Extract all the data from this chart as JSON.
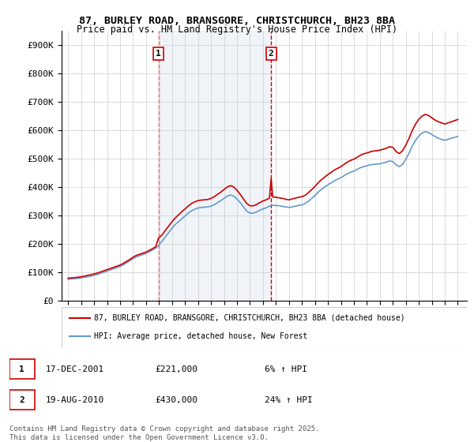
{
  "title_line1": "87, BURLEY ROAD, BRANSGORE, CHRISTCHURCH, BH23 8BA",
  "title_line2": "Price paid vs. HM Land Registry's House Price Index (HPI)",
  "ylim": [
    0,
    950000
  ],
  "yticks": [
    0,
    100000,
    200000,
    300000,
    400000,
    500000,
    600000,
    700000,
    800000,
    900000
  ],
  "ytick_labels": [
    "£0",
    "£100K",
    "£200K",
    "£300K",
    "£400K",
    "£500K",
    "£600K",
    "£700K",
    "£800K",
    "£900K"
  ],
  "xlim_start": 1994.5,
  "xlim_end": 2025.7,
  "sale1_x": 2001.96,
  "sale1_y": 221000,
  "sale1_label": "1",
  "sale2_x": 2010.63,
  "sale2_y": 430000,
  "sale2_label": "2",
  "legend_house_label": "87, BURLEY ROAD, BRANSGORE, CHRISTCHURCH, BH23 8BA (detached house)",
  "legend_hpi_label": "HPI: Average price, detached house, New Forest",
  "house_color": "#cc0000",
  "hpi_color": "#6699cc",
  "vline_color": "#cc0000",
  "vline_style": "--",
  "annotation_box_color": "#cc0000",
  "bg_color": "#dce6f1",
  "plot_bg": "#ffffff",
  "footer_line1": "Contains HM Land Registry data © Crown copyright and database right 2025.",
  "footer_line2": "This data is licensed under the Open Government Licence v3.0.",
  "table_row1": [
    "1",
    "17-DEC-2001",
    "£221,000",
    "6% ↑ HPI"
  ],
  "table_row2": [
    "2",
    "19-AUG-2010",
    "£430,000",
    "24% ↑ HPI"
  ],
  "hpi_data": {
    "years": [
      1995.0,
      1995.25,
      1995.5,
      1995.75,
      1996.0,
      1996.25,
      1996.5,
      1996.75,
      1997.0,
      1997.25,
      1997.5,
      1997.75,
      1998.0,
      1998.25,
      1998.5,
      1998.75,
      1999.0,
      1999.25,
      1999.5,
      1999.75,
      2000.0,
      2000.25,
      2000.5,
      2000.75,
      2001.0,
      2001.25,
      2001.5,
      2001.75,
      2002.0,
      2002.25,
      2002.5,
      2002.75,
      2003.0,
      2003.25,
      2003.5,
      2003.75,
      2004.0,
      2004.25,
      2004.5,
      2004.75,
      2005.0,
      2005.25,
      2005.5,
      2005.75,
      2006.0,
      2006.25,
      2006.5,
      2006.75,
      2007.0,
      2007.25,
      2007.5,
      2007.75,
      2008.0,
      2008.25,
      2008.5,
      2008.75,
      2009.0,
      2009.25,
      2009.5,
      2009.75,
      2010.0,
      2010.25,
      2010.5,
      2010.75,
      2011.0,
      2011.25,
      2011.5,
      2011.75,
      2012.0,
      2012.25,
      2012.5,
      2012.75,
      2013.0,
      2013.25,
      2013.5,
      2013.75,
      2014.0,
      2014.25,
      2014.5,
      2014.75,
      2015.0,
      2015.25,
      2015.5,
      2015.75,
      2016.0,
      2016.25,
      2016.5,
      2016.75,
      2017.0,
      2017.25,
      2017.5,
      2017.75,
      2018.0,
      2018.25,
      2018.5,
      2018.75,
      2019.0,
      2019.25,
      2019.5,
      2019.75,
      2020.0,
      2020.25,
      2020.5,
      2020.75,
      2021.0,
      2021.25,
      2021.5,
      2021.75,
      2022.0,
      2022.25,
      2022.5,
      2022.75,
      2023.0,
      2023.25,
      2023.5,
      2023.75,
      2024.0,
      2024.25,
      2024.5,
      2024.75,
      2025.0
    ],
    "values": [
      75000,
      76000,
      77000,
      78000,
      80000,
      82000,
      84000,
      86000,
      89000,
      92000,
      96000,
      100000,
      104000,
      108000,
      112000,
      116000,
      120000,
      126000,
      133000,
      140000,
      148000,
      154000,
      158000,
      162000,
      166000,
      172000,
      178000,
      185000,
      196000,
      210000,
      225000,
      240000,
      255000,
      268000,
      278000,
      288000,
      298000,
      308000,
      316000,
      322000,
      326000,
      328000,
      329000,
      330000,
      333000,
      338000,
      345000,
      352000,
      360000,
      368000,
      372000,
      368000,
      358000,
      345000,
      330000,
      315000,
      308000,
      308000,
      312000,
      318000,
      323000,
      327000,
      333000,
      336000,
      335000,
      334000,
      332000,
      330000,
      328000,
      330000,
      333000,
      335000,
      337000,
      342000,
      350000,
      360000,
      370000,
      382000,
      392000,
      400000,
      408000,
      415000,
      422000,
      428000,
      433000,
      440000,
      447000,
      452000,
      456000,
      462000,
      468000,
      472000,
      475000,
      478000,
      480000,
      481000,
      482000,
      485000,
      488000,
      492000,
      490000,
      478000,
      472000,
      480000,
      498000,
      520000,
      545000,
      565000,
      580000,
      590000,
      595000,
      592000,
      585000,
      578000,
      572000,
      568000,
      565000,
      568000,
      572000,
      575000,
      578000
    ]
  },
  "house_data": {
    "years": [
      1995.0,
      1995.25,
      1995.5,
      1995.75,
      1996.0,
      1996.25,
      1996.5,
      1996.75,
      1997.0,
      1997.25,
      1997.5,
      1997.75,
      1998.0,
      1998.25,
      1998.5,
      1998.75,
      1999.0,
      1999.25,
      1999.5,
      1999.75,
      2000.0,
      2000.25,
      2000.5,
      2000.75,
      2001.0,
      2001.25,
      2001.5,
      2001.75,
      2001.96,
      2002.0,
      2002.25,
      2002.5,
      2002.75,
      2003.0,
      2003.25,
      2003.5,
      2003.75,
      2004.0,
      2004.25,
      2004.5,
      2004.75,
      2005.0,
      2005.25,
      2005.5,
      2005.75,
      2006.0,
      2006.25,
      2006.5,
      2006.75,
      2007.0,
      2007.25,
      2007.5,
      2007.75,
      2008.0,
      2008.25,
      2008.5,
      2008.75,
      2009.0,
      2009.25,
      2009.5,
      2009.75,
      2010.0,
      2010.25,
      2010.5,
      2010.63,
      2010.75,
      2011.0,
      2011.25,
      2011.5,
      2011.75,
      2012.0,
      2012.25,
      2012.5,
      2012.75,
      2013.0,
      2013.25,
      2013.5,
      2013.75,
      2014.0,
      2014.25,
      2014.5,
      2014.75,
      2015.0,
      2015.25,
      2015.5,
      2015.75,
      2016.0,
      2016.25,
      2016.5,
      2016.75,
      2017.0,
      2017.25,
      2017.5,
      2017.75,
      2018.0,
      2018.25,
      2018.5,
      2018.75,
      2019.0,
      2019.25,
      2019.5,
      2019.75,
      2020.0,
      2020.25,
      2020.5,
      2020.75,
      2021.0,
      2021.25,
      2021.5,
      2021.75,
      2022.0,
      2022.25,
      2022.5,
      2022.75,
      2023.0,
      2023.25,
      2023.5,
      2023.75,
      2024.0,
      2024.25,
      2024.5,
      2024.75,
      2025.0
    ],
    "values": [
      79000,
      80000,
      81000,
      82000,
      84000,
      86000,
      89000,
      91000,
      94000,
      97000,
      101000,
      105000,
      109000,
      113000,
      117000,
      121000,
      125000,
      131000,
      138000,
      145000,
      153000,
      159000,
      163000,
      167000,
      171000,
      177000,
      183000,
      190000,
      221000,
      221000,
      232000,
      248000,
      263000,
      278000,
      291000,
      302000,
      313000,
      323000,
      333000,
      342000,
      348000,
      352000,
      354000,
      355000,
      356000,
      360000,
      366000,
      374000,
      382000,
      391000,
      400000,
      405000,
      400000,
      389000,
      374000,
      358000,
      342000,
      334000,
      334000,
      338000,
      345000,
      351000,
      355000,
      361000,
      430000,
      365000,
      364000,
      362000,
      360000,
      357000,
      355000,
      358000,
      361000,
      364000,
      366000,
      371000,
      380000,
      391000,
      402000,
      415000,
      426000,
      435000,
      444000,
      452000,
      460000,
      466000,
      472000,
      480000,
      488000,
      494000,
      498000,
      505000,
      512000,
      517000,
      520000,
      524000,
      527000,
      528000,
      530000,
      533000,
      537000,
      542000,
      540000,
      525000,
      518000,
      528000,
      548000,
      572000,
      600000,
      622000,
      639000,
      650000,
      656000,
      652000,
      644000,
      636000,
      630000,
      626000,
      622000,
      626000,
      630000,
      634000,
      638000
    ]
  }
}
